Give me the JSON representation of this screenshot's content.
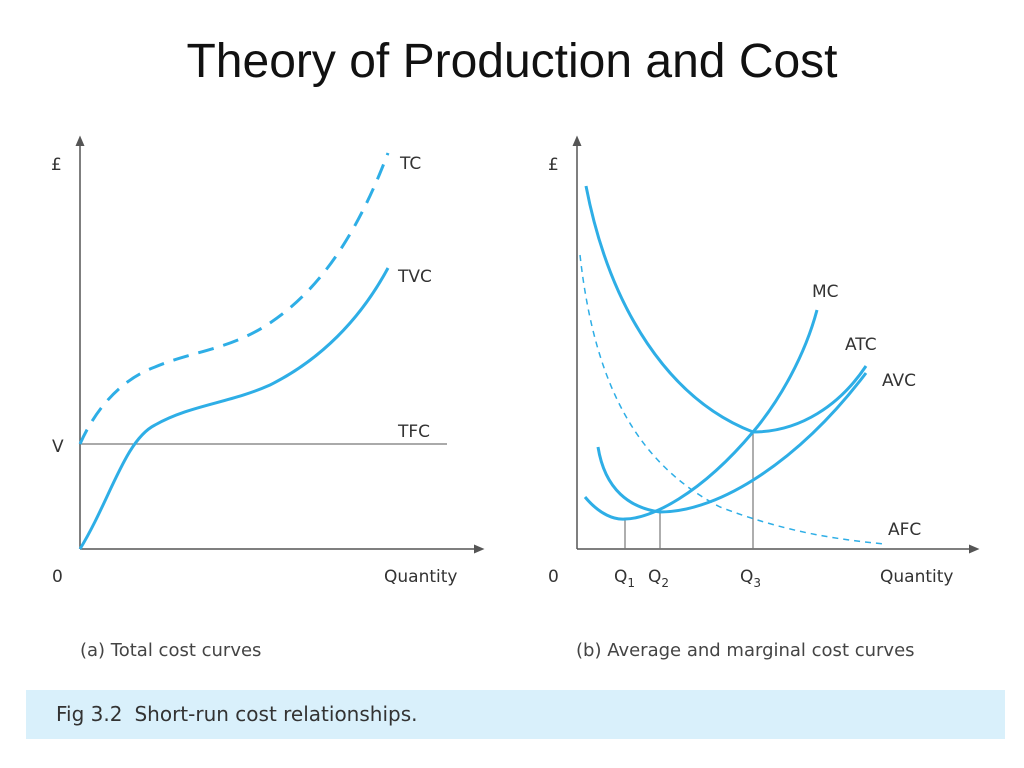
{
  "title": "Theory of Production and Cost",
  "colors": {
    "curve": "#2eaee6",
    "axis": "#555555",
    "guide": "#777777",
    "caption_band": "#d9f0fb"
  },
  "panel_a": {
    "y_axis_label": "£",
    "origin_label": "0",
    "x_axis_label": "Quantity",
    "v_label": "V",
    "curves": {
      "tc": "TC",
      "tvc": "TVC",
      "tfc": "TFC"
    },
    "caption": "(a) Total cost curves"
  },
  "panel_b": {
    "y_axis_label": "£",
    "origin_label": "0",
    "x_axis_label": "Quantity",
    "curves": {
      "mc": "MC",
      "atc": "ATC",
      "avc": "AVC",
      "afc": "AFC"
    },
    "q1": "Q",
    "q1_sub": "1",
    "q2": "Q",
    "q2_sub": "2",
    "q3": "Q",
    "q3_sub": "3",
    "caption": "(b) Average and marginal cost curves"
  },
  "figure": {
    "number": "Fig 3.2",
    "caption": "Short-run cost relationships."
  }
}
